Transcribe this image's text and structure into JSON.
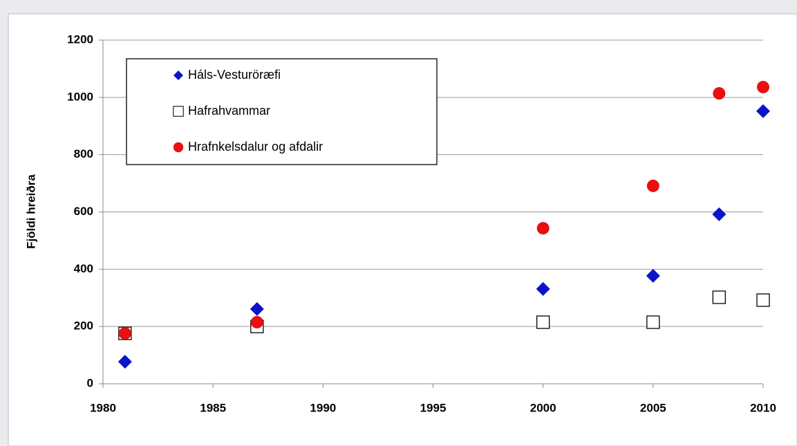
{
  "chart_data": {
    "type": "scatter",
    "ylabel": "Fjöldi hreiðra",
    "xlim": [
      1980,
      2010
    ],
    "xticks": [
      1980,
      1985,
      1990,
      1995,
      2000,
      2005,
      2010
    ],
    "ylim": [
      0,
      1200
    ],
    "yticks": [
      0,
      200,
      400,
      600,
      800,
      1000,
      1200
    ],
    "grid": true,
    "legend": "upper left",
    "series": [
      {
        "name": "Háls-Vesturöræfi",
        "color": "#0a14c8",
        "marker": "diamond",
        "x": [
          1981,
          1987,
          2000,
          2005,
          2008,
          2010
        ],
        "values": [
          77,
          261,
          331,
          377,
          592,
          952
        ]
      },
      {
        "name": "Hafrahvammar",
        "color": "#000000",
        "marker": "open-square",
        "x": [
          1981,
          1987,
          2000,
          2005,
          2008,
          2010
        ],
        "values": [
          176,
          200,
          215,
          215,
          302,
          292
        ]
      },
      {
        "name": "Hrafnkelsdalur og afdalir",
        "color": "#e81010",
        "marker": "circle",
        "x": [
          1981,
          1987,
          2000,
          2005,
          2008,
          2010
        ],
        "values": [
          176,
          215,
          543,
          691,
          1014,
          1036
        ]
      }
    ]
  }
}
